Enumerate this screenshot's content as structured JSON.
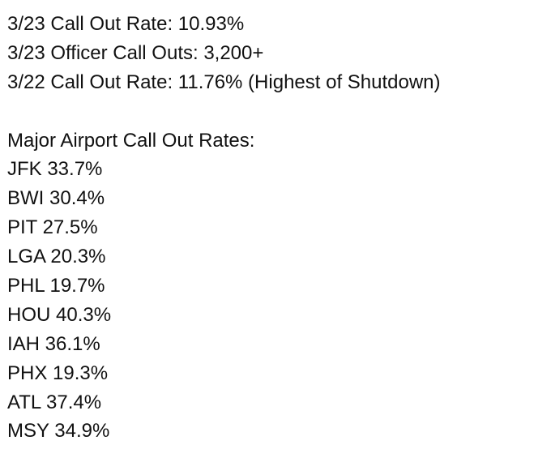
{
  "stats": [
    "3/23 Call Out Rate: 10.93%",
    "3/23 Officer Call Outs: 3,200+",
    "3/22 Call Out Rate: 11.76% (Highest of Shutdown)"
  ],
  "airports": {
    "heading": "Major Airport Call Out Rates:",
    "rows": [
      "JFK 33.7%",
      "BWI 30.4%",
      "PIT 27.5%",
      "LGA 20.3%",
      "PHL 19.7%",
      "HOU 40.3%",
      "IAH 36.1%",
      "PHX 19.3%",
      "ATL 37.4%",
      "MSY 34.9%"
    ]
  }
}
